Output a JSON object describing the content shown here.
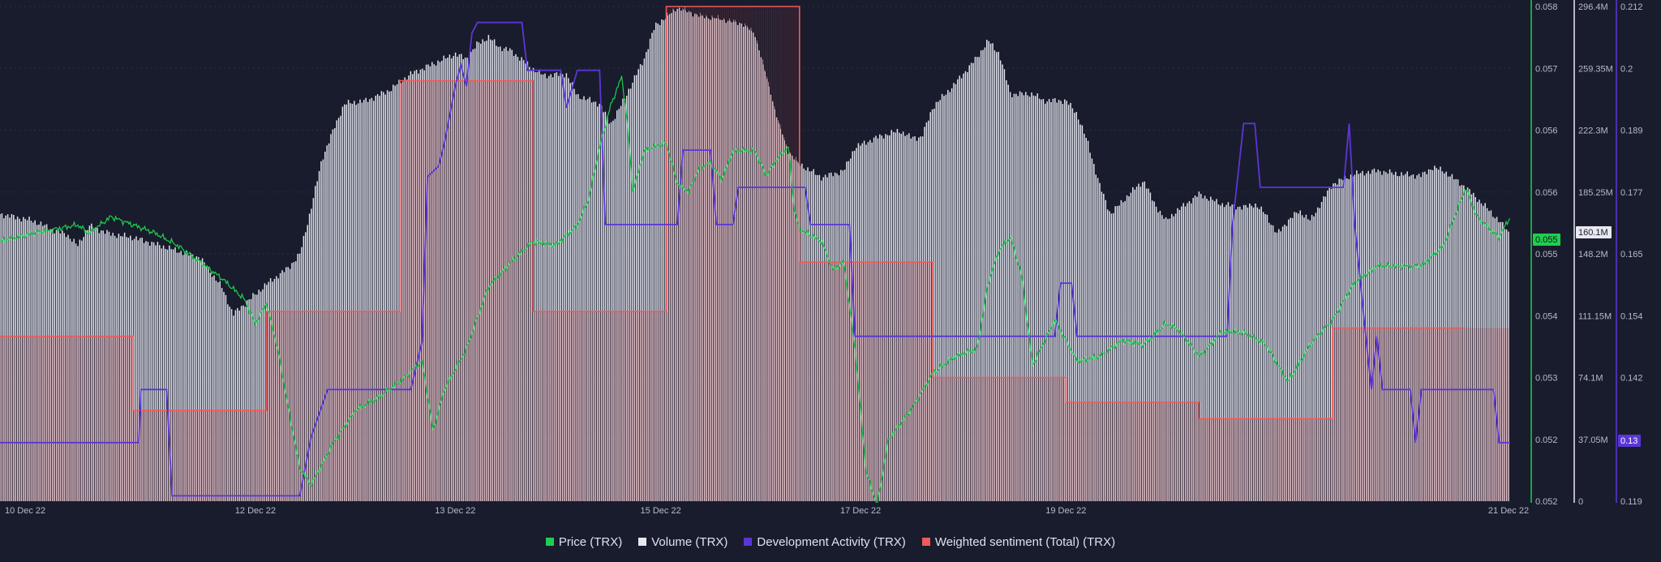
{
  "chart_data": {
    "type": "line",
    "x_ticks": [
      "10 Dec 22",
      "12 Dec 22",
      "13 Dec 22",
      "15 Dec 22",
      "17 Dec 22",
      "19 Dec 22",
      "21 Dec 22"
    ],
    "axes": {
      "price": {
        "ticks": [
          "0.058",
          "0.057",
          "0.056",
          "0.056",
          "0.055",
          "0.054",
          "0.053",
          "0.052",
          "0.052"
        ],
        "ylim": [
          0.052,
          0.058
        ],
        "color": "#1ecf4f",
        "current": "0.055"
      },
      "volume": {
        "ticks": [
          "296.4M",
          "259.35M",
          "222.3M",
          "185.25M",
          "148.2M",
          "111.15M",
          "74.1M",
          "37.05M",
          "0"
        ],
        "ylim": [
          0,
          296.4
        ],
        "color": "#e7e8f0",
        "current": "160.1M"
      },
      "dev_activity": {
        "ticks": [
          "0.212",
          "0.2",
          "0.189",
          "0.177",
          "0.165",
          "0.154",
          "0.142",
          "0.13",
          "0.119"
        ],
        "ylim": [
          0.119,
          0.212
        ],
        "color": "#5a36d8",
        "current": "0.13"
      }
    },
    "series": [
      {
        "name": "Price (TRX)",
        "color": "#1ecf4f",
        "points": [
          [
            0,
            0.05515
          ],
          [
            0.03,
            0.05525
          ],
          [
            0.05,
            0.0553
          ],
          [
            0.07,
            0.05535
          ],
          [
            0.08,
            0.05525
          ],
          [
            0.1,
            0.05545
          ],
          [
            0.12,
            0.05535
          ],
          [
            0.14,
            0.05525
          ],
          [
            0.16,
            0.0551
          ],
          [
            0.18,
            0.0549
          ],
          [
            0.2,
            0.0547
          ],
          [
            0.22,
            0.05445
          ],
          [
            0.23,
            0.05415
          ],
          [
            0.24,
            0.0544
          ],
          [
            0.25,
            0.05385
          ],
          [
            0.26,
            0.0531
          ],
          [
            0.27,
            0.0524
          ],
          [
            0.28,
            0.0522
          ],
          [
            0.3,
            0.0527
          ],
          [
            0.32,
            0.0531
          ],
          [
            0.34,
            0.05325
          ],
          [
            0.36,
            0.05345
          ],
          [
            0.38,
            0.0537
          ],
          [
            0.39,
            0.05285
          ],
          [
            0.4,
            0.05335
          ],
          [
            0.42,
            0.05385
          ],
          [
            0.44,
            0.0546
          ],
          [
            0.46,
            0.0549
          ],
          [
            0.48,
            0.05515
          ],
          [
            0.5,
            0.0551
          ],
          [
            0.52,
            0.05535
          ],
          [
            0.53,
            0.05565
          ],
          [
            0.54,
            0.0563
          ],
          [
            0.55,
            0.0568
          ],
          [
            0.56,
            0.05715
          ],
          [
            0.565,
            0.0566
          ],
          [
            0.57,
            0.05575
          ],
          [
            0.58,
            0.05625
          ],
          [
            0.6,
            0.05635
          ],
          [
            0.61,
            0.05585
          ],
          [
            0.62,
            0.05575
          ],
          [
            0.63,
            0.05605
          ],
          [
            0.64,
            0.0561
          ],
          [
            0.65,
            0.0559
          ],
          [
            0.66,
            0.05625
          ],
          [
            0.68,
            0.05625
          ],
          [
            0.69,
            0.05595
          ],
          [
            0.7,
            0.05615
          ],
          [
            0.71,
            0.0563
          ],
          [
            0.715,
            0.05555
          ],
          [
            0.72,
            0.0553
          ],
          [
            0.74,
            0.05515
          ],
          [
            0.75,
            0.0548
          ],
          [
            0.76,
            0.0549
          ],
          [
            0.77,
            0.05385
          ],
          [
            0.78,
            0.05235
          ],
          [
            0.79,
            0.05195
          ],
          [
            0.8,
            0.05275
          ],
          [
            0.82,
            0.0531
          ],
          [
            0.84,
            0.05355
          ],
          [
            0.86,
            0.05375
          ],
          [
            0.88,
            0.05385
          ],
          [
            0.89,
            0.05465
          ],
          [
            0.9,
            0.05505
          ],
          [
            0.91,
            0.0552
          ],
          [
            0.92,
            0.05475
          ],
          [
            0.93,
            0.05365
          ],
          [
            0.95,
            0.0542
          ],
          [
            0.97,
            0.0537
          ],
          [
            0.99,
            0.05375
          ],
          [
            1.01,
            0.05395
          ],
          [
            1.03,
            0.0539
          ],
          [
            1.05,
            0.05415
          ],
          [
            1.06,
            0.0541
          ],
          [
            1.08,
            0.05375
          ],
          [
            1.1,
            0.05405
          ],
          [
            1.12,
            0.05405
          ],
          [
            1.14,
            0.0539
          ],
          [
            1.16,
            0.05345
          ],
          [
            1.18,
            0.0539
          ],
          [
            1.2,
            0.0542
          ],
          [
            1.22,
            0.05465
          ],
          [
            1.24,
            0.05485
          ],
          [
            1.26,
            0.05485
          ],
          [
            1.28,
            0.05485
          ],
          [
            1.3,
            0.0551
          ],
          [
            1.32,
            0.0558
          ],
          [
            1.33,
            0.05545
          ],
          [
            1.35,
            0.0552
          ],
          [
            1.36,
            0.05545
          ]
        ]
      },
      {
        "name": "Volume (TRX)",
        "color": "#e7e8f0",
        "points": [
          [
            0,
            172
          ],
          [
            0.03,
            168
          ],
          [
            0.05,
            162
          ],
          [
            0.06,
            160
          ],
          [
            0.07,
            153
          ],
          [
            0.08,
            165
          ],
          [
            0.1,
            160
          ],
          [
            0.12,
            158
          ],
          [
            0.14,
            154
          ],
          [
            0.16,
            150
          ],
          [
            0.18,
            146
          ],
          [
            0.2,
            128
          ],
          [
            0.21,
            112
          ],
          [
            0.22,
            118
          ],
          [
            0.23,
            124
          ],
          [
            0.24,
            130
          ],
          [
            0.26,
            140
          ],
          [
            0.27,
            148
          ],
          [
            0.28,
            175
          ],
          [
            0.29,
            205
          ],
          [
            0.3,
            222
          ],
          [
            0.31,
            238
          ],
          [
            0.33,
            240
          ],
          [
            0.35,
            246
          ],
          [
            0.37,
            256
          ],
          [
            0.39,
            262
          ],
          [
            0.41,
            268
          ],
          [
            0.42,
            265
          ],
          [
            0.43,
            274
          ],
          [
            0.44,
            278
          ],
          [
            0.45,
            272
          ],
          [
            0.46,
            270
          ],
          [
            0.48,
            259
          ],
          [
            0.49,
            255
          ],
          [
            0.51,
            256
          ],
          [
            0.52,
            243
          ],
          [
            0.54,
            238
          ],
          [
            0.55,
            226
          ],
          [
            0.56,
            238
          ],
          [
            0.58,
            265
          ],
          [
            0.59,
            285
          ],
          [
            0.6,
            290
          ],
          [
            0.61,
            296
          ],
          [
            0.63,
            291
          ],
          [
            0.65,
            289
          ],
          [
            0.67,
            286
          ],
          [
            0.68,
            280
          ],
          [
            0.69,
            256
          ],
          [
            0.7,
            230
          ],
          [
            0.71,
            210
          ],
          [
            0.72,
            202
          ],
          [
            0.74,
            194
          ],
          [
            0.76,
            198
          ],
          [
            0.77,
            212
          ],
          [
            0.79,
            218
          ],
          [
            0.81,
            222
          ],
          [
            0.82,
            218
          ],
          [
            0.83,
            218
          ],
          [
            0.84,
            236
          ],
          [
            0.86,
            250
          ],
          [
            0.88,
            266
          ],
          [
            0.89,
            276
          ],
          [
            0.9,
            268
          ],
          [
            0.91,
            244
          ],
          [
            0.93,
            244
          ],
          [
            0.94,
            240
          ],
          [
            0.96,
            240
          ],
          [
            0.97,
            232
          ],
          [
            0.98,
            214
          ],
          [
            0.99,
            190
          ],
          [
            1.0,
            172
          ],
          [
            1.02,
            186
          ],
          [
            1.03,
            192
          ],
          [
            1.04,
            178
          ],
          [
            1.05,
            168
          ],
          [
            1.06,
            174
          ],
          [
            1.08,
            184
          ],
          [
            1.1,
            178
          ],
          [
            1.12,
            176
          ],
          [
            1.13,
            178
          ],
          [
            1.14,
            172
          ],
          [
            1.15,
            160
          ],
          [
            1.16,
            168
          ],
          [
            1.17,
            174
          ],
          [
            1.18,
            168
          ],
          [
            1.2,
            190
          ],
          [
            1.22,
            196
          ],
          [
            1.24,
            198
          ],
          [
            1.26,
            196
          ],
          [
            1.28,
            195
          ],
          [
            1.29,
            200
          ],
          [
            1.3,
            198
          ],
          [
            1.32,
            188
          ],
          [
            1.34,
            175
          ],
          [
            1.35,
            168
          ],
          [
            1.36,
            160
          ]
        ]
      },
      {
        "name": "Development Activity (TRX)",
        "color": "#5a36d8",
        "points": [
          [
            0,
            0.13
          ],
          [
            0.125,
            0.13
          ],
          [
            0.127,
            0.14
          ],
          [
            0.15,
            0.14
          ],
          [
            0.155,
            0.12
          ],
          [
            0.27,
            0.12
          ],
          [
            0.28,
            0.131
          ],
          [
            0.295,
            0.14
          ],
          [
            0.37,
            0.14
          ],
          [
            0.38,
            0.149
          ],
          [
            0.385,
            0.18
          ],
          [
            0.395,
            0.182
          ],
          [
            0.4,
            0.186
          ],
          [
            0.41,
            0.197
          ],
          [
            0.415,
            0.201
          ],
          [
            0.42,
            0.197
          ],
          [
            0.425,
            0.207
          ],
          [
            0.43,
            0.209
          ],
          [
            0.47,
            0.209
          ],
          [
            0.475,
            0.2
          ],
          [
            0.505,
            0.2
          ],
          [
            0.51,
            0.193
          ],
          [
            0.52,
            0.2
          ],
          [
            0.54,
            0.2
          ],
          [
            0.545,
            0.171
          ],
          [
            0.61,
            0.171
          ],
          [
            0.615,
            0.185
          ],
          [
            0.64,
            0.185
          ],
          [
            0.645,
            0.171
          ],
          [
            0.66,
            0.171
          ],
          [
            0.665,
            0.178
          ],
          [
            0.725,
            0.178
          ],
          [
            0.73,
            0.171
          ],
          [
            0.765,
            0.171
          ],
          [
            0.77,
            0.15
          ],
          [
            0.95,
            0.15
          ],
          [
            0.955,
            0.16
          ],
          [
            0.965,
            0.16
          ],
          [
            0.97,
            0.15
          ],
          [
            1.105,
            0.15
          ],
          [
            1.11,
            0.171
          ],
          [
            1.12,
            0.19
          ],
          [
            1.13,
            0.19
          ],
          [
            1.135,
            0.178
          ],
          [
            1.21,
            0.178
          ],
          [
            1.215,
            0.19
          ],
          [
            1.22,
            0.171
          ],
          [
            1.23,
            0.15
          ],
          [
            1.235,
            0.14
          ],
          [
            1.24,
            0.15
          ],
          [
            1.245,
            0.14
          ],
          [
            1.27,
            0.14
          ],
          [
            1.275,
            0.13
          ],
          [
            1.28,
            0.14
          ],
          [
            1.345,
            0.14
          ],
          [
            1.35,
            0.13
          ],
          [
            1.36,
            0.13
          ]
        ]
      },
      {
        "name": "Weighted sentiment (Total) (TRX)",
        "color": "#f05a5a",
        "points": [
          [
            0,
            0.054
          ],
          [
            0.12,
            0.054
          ],
          [
            0.12,
            0.0531
          ],
          [
            0.24,
            0.0531
          ],
          [
            0.24,
            0.0543
          ],
          [
            0.36,
            0.0543
          ],
          [
            0.36,
            0.0571
          ],
          [
            0.48,
            0.0571
          ],
          [
            0.48,
            0.0543
          ],
          [
            0.6,
            0.0543
          ],
          [
            0.6,
            0.0581
          ],
          [
            0.72,
            0.0581
          ],
          [
            0.72,
            0.0549
          ],
          [
            0.84,
            0.0549
          ],
          [
            0.84,
            0.0535
          ],
          [
            0.96,
            0.0535
          ],
          [
            0.96,
            0.0532
          ],
          [
            1.08,
            0.0532
          ],
          [
            1.08,
            0.053
          ],
          [
            1.2,
            0.053
          ],
          [
            1.2,
            0.0541
          ],
          [
            1.32,
            0.0541
          ],
          [
            1.32,
            0.0541
          ]
        ]
      }
    ],
    "legend": [
      "Price (TRX)",
      "Volume (TRX)",
      "Development Activity (TRX)",
      "Weighted sentiment (Total) (TRX)"
    ],
    "legend_position": "bottom-center",
    "grid": true
  }
}
